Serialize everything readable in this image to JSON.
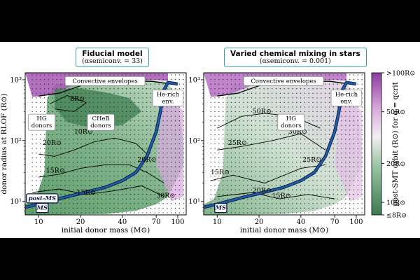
{
  "chart_data": [
    {
      "type": "heatmap",
      "title": "Fiducial model",
      "subtitle": "(αsemiconv. = 33)",
      "xlabel": "initial donor mass (M⊙)",
      "ylabel": "donor radius at RLOF (R⊙)",
      "x_scale": "log",
      "y_scale": "log",
      "xlim": [
        8,
        115
      ],
      "ylim": [
        6,
        1300
      ],
      "x_ticks": [
        {
          "value": 10,
          "label": "10"
        },
        {
          "value": 20,
          "label": "20"
        },
        {
          "value": 40,
          "label": "40"
        },
        {
          "value": 70,
          "label": "70"
        },
        {
          "value": 100,
          "label": "100"
        }
      ],
      "y_ticks": [
        {
          "value": 10,
          "label": "10¹"
        },
        {
          "value": 100,
          "label": "10²"
        },
        {
          "value": 1000,
          "label": "10³"
        }
      ],
      "contour_labels": [
        {
          "text": "8R⊙",
          "x": 19,
          "y": 450
        },
        {
          "text": "10R⊙",
          "x": 21,
          "y": 130
        },
        {
          "text": "20R⊙",
          "x": 12.5,
          "y": 85
        },
        {
          "text": "15R⊙",
          "x": 13.2,
          "y": 30
        },
        {
          "text": "15R⊙",
          "x": 22,
          "y": 13
        },
        {
          "text": "20R⊙",
          "x": 60,
          "y": 45
        },
        {
          "text": "30R⊙",
          "x": 82,
          "y": 11.5
        }
      ],
      "region_labels": [
        {
          "text": "Convective envelopes",
          "x": 30,
          "y": 950
        },
        {
          "text": "HG|donors",
          "x": 10.5,
          "y": 200
        },
        {
          "text": "CHeB|donors",
          "x": 28,
          "y": 200
        },
        {
          "text": "He-rich|env.",
          "x": 85,
          "y": 500
        },
        {
          "text": "post-MS",
          "x": 10.6,
          "y": 11.2
        },
        {
          "text": "MS",
          "x": 10.6,
          "y": 7.8
        }
      ],
      "ms_track": [
        [
          8,
          8
        ],
        [
          10,
          9
        ],
        [
          15,
          11.5
        ],
        [
          20,
          13.5
        ],
        [
          30,
          17
        ],
        [
          40,
          22
        ],
        [
          50,
          30
        ],
        [
          60,
          55
        ],
        [
          70,
          140
        ],
        [
          75,
          300
        ],
        [
          80,
          700
        ],
        [
          85,
          900
        ],
        [
          100,
          850
        ]
      ]
    },
    {
      "type": "heatmap",
      "title": "Varied chemical mixing in stars",
      "subtitle": "(αsemiconv. = 0.001)",
      "xlabel": "initial donor mass (M⊙)",
      "ylabel": "",
      "x_scale": "log",
      "y_scale": "log",
      "xlim": [
        8,
        115
      ],
      "ylim": [
        6,
        1300
      ],
      "x_ticks": [
        {
          "value": 10,
          "label": "10"
        },
        {
          "value": 20,
          "label": "20"
        },
        {
          "value": 40,
          "label": "40"
        },
        {
          "value": 70,
          "label": "70"
        },
        {
          "value": 100,
          "label": "100"
        }
      ],
      "y_ticks": [
        {
          "value": 10,
          "label": "10¹"
        },
        {
          "value": 100,
          "label": "10²"
        },
        {
          "value": 1000,
          "label": "10³"
        }
      ],
      "contour_labels": [
        {
          "text": "50R⊙",
          "x": 21,
          "y": 280
        },
        {
          "text": "30R⊙",
          "x": 38,
          "y": 130
        },
        {
          "text": "25R⊙",
          "x": 14,
          "y": 85
        },
        {
          "text": "25R⊙",
          "x": 48,
          "y": 45
        },
        {
          "text": "15R⊙",
          "x": 10.5,
          "y": 28
        },
        {
          "text": "20R⊙",
          "x": 21,
          "y": 14
        },
        {
          "text": "15R⊙",
          "x": 29,
          "y": 11.5
        }
      ],
      "region_labels": [
        {
          "text": "Convective envelopes",
          "x": 30,
          "y": 950
        },
        {
          "text": "HG|donors",
          "x": 34,
          "y": 200
        },
        {
          "text": "He-rich|env.",
          "x": 85,
          "y": 500
        },
        {
          "text": "MS",
          "x": 10.6,
          "y": 7.8
        }
      ],
      "ms_track": [
        [
          8,
          8
        ],
        [
          10,
          9
        ],
        [
          15,
          11.5
        ],
        [
          20,
          13.5
        ],
        [
          30,
          17
        ],
        [
          40,
          22
        ],
        [
          50,
          30
        ],
        [
          60,
          55
        ],
        [
          70,
          140
        ],
        [
          75,
          300
        ],
        [
          80,
          700
        ],
        [
          85,
          900
        ],
        [
          100,
          850
        ]
      ]
    }
  ],
  "colorbar": {
    "label": "post-SMT orbit (R⊙) for q = qcrit",
    "tick_labels": [
      ">100R⊙",
      "50R⊙",
      "20R⊙",
      "10R⊙",
      "≤8R⊙"
    ],
    "tick_values": [
      100,
      50,
      20,
      10,
      8
    ],
    "colors": {
      "high": "#8c3aa0",
      "mid": "#f5f0f5",
      "low": "#3b7a4e"
    }
  },
  "colors": {
    "track": "#1f5fa8",
    "track_outline": "#0b1a4a",
    "contour": "#000000",
    "panel_title_border": "#3aa0a8"
  }
}
